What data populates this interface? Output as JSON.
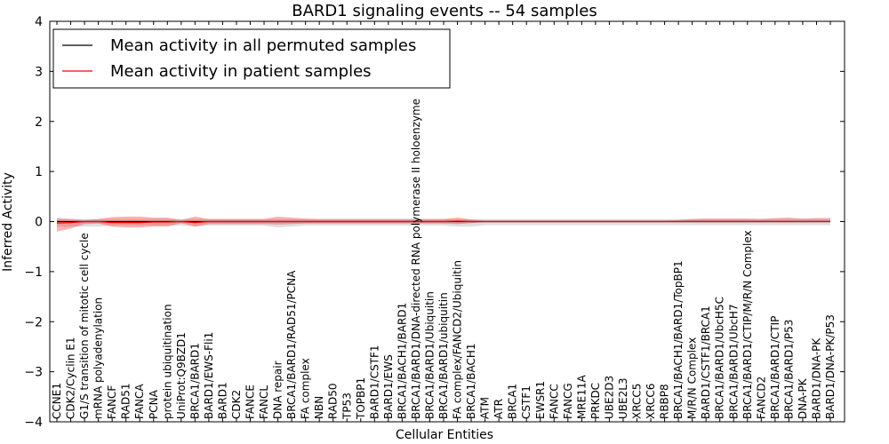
{
  "chart_data": {
    "type": "line",
    "title": "BARD1 signaling events -- 54 samples",
    "xlabel": "Cellular Entities",
    "ylabel": "Inferred Activity",
    "ylim": [
      -4,
      4
    ],
    "yticks": [
      "−4",
      "−3",
      "−2",
      "−1",
      "0",
      "1",
      "2",
      "3",
      "4"
    ],
    "legend_position": "top-left",
    "legend": [
      {
        "label": "Mean activity in all permuted samples",
        "color": "#000000"
      },
      {
        "label": "Mean activity in patient samples",
        "color": "#ff0000"
      }
    ],
    "categories": [
      "CCNE1",
      "CDK2/Cyclin E1",
      "G1/S transition of mitotic cell cycle",
      "mRNA polyadenylation",
      "FANCF",
      "RAD51",
      "FANCA",
      "PCNA",
      "protein ubiquitination",
      "UniProt:Q9BZD1",
      "BRCA1/BARD1",
      "BARD1/EWS-Fli1",
      "BARD1",
      "CDK2",
      "FANCE",
      "FANCL",
      "DNA repair",
      "BRCA1/BARD1/RAD51/PCNA",
      "FA complex",
      "NBN",
      "RAD50",
      "TP53",
      "TOPBP1",
      "BARD1/CSTF1",
      "BARD1/EWS",
      "BRCA1/BACH1/BARD1",
      "BRCA1/BARD1/DNA-directed RNA polymerase II holoenzyme",
      "BRCA1/BARD1/Ubiquitin",
      "BRCA1/BARD1/ubiquitin",
      "FA complex/FANCD2/Ubiquitin",
      "BRCA1/BACH1",
      "ATM",
      "ATR",
      "BRCA1",
      "CSTF1",
      "EWSR1",
      "FANCC",
      "FANCG",
      "MRE11A",
      "PRKDC",
      "UBE2D3",
      "UBE2L3",
      "XRCC5",
      "XRCC6",
      "RBBP8",
      "BRCA1/BACH1/BARD1/TopBP1",
      "M/R/N Complex",
      "BARD1/CSTF1/BRCA1",
      "BRCA1/BARD1/UbcH5C",
      "BRCA1/BARD1/UbcH7",
      "BRCA1/BARD1/CTIP/M/R/N Complex",
      "FANCD2",
      "BRCA1/BARD1/CTIP",
      "BRCA1/BARD1/P53",
      "DNA-PK",
      "BARD1/DNA-PK",
      "BARD1/DNA-PK/P53"
    ],
    "series": [
      {
        "name": "Mean activity in all permuted samples",
        "color": "#000000",
        "values": [
          0,
          0,
          0,
          0,
          0,
          0,
          0,
          0,
          0,
          0,
          0,
          0,
          0,
          0,
          0,
          0,
          0,
          0,
          0,
          0,
          0,
          0,
          0,
          0,
          0,
          0,
          0,
          0,
          0,
          0,
          0,
          0,
          0,
          0,
          0,
          0,
          0,
          0,
          0,
          0,
          0,
          0,
          0,
          0,
          0,
          0,
          0,
          0,
          0,
          0,
          0,
          0,
          0,
          0,
          0,
          0,
          0
        ],
        "band_upper": [
          0.05,
          0.05,
          0.05,
          0.05,
          0.05,
          0.05,
          0.05,
          0.05,
          0.05,
          0.05,
          0.05,
          0.05,
          0.05,
          0.05,
          0.05,
          0.05,
          0.05,
          0.05,
          0.05,
          0.05,
          0.05,
          0.05,
          0.05,
          0.05,
          0.05,
          0.05,
          0.05,
          0.05,
          0.05,
          0.05,
          0.05,
          0.05,
          0.05,
          0.05,
          0.05,
          0.05,
          0.05,
          0.05,
          0.05,
          0.05,
          0.05,
          0.05,
          0.05,
          0.05,
          0.05,
          0.05,
          0.05,
          0.05,
          0.05,
          0.05,
          0.05,
          0.05,
          0.05,
          0.05,
          0.05,
          0.05,
          0.05
        ],
        "band_lower": [
          -0.1,
          -0.1,
          -0.1,
          -0.1,
          -0.08,
          -0.08,
          -0.08,
          -0.08,
          -0.08,
          -0.08,
          -0.1,
          -0.08,
          -0.08,
          -0.08,
          -0.08,
          -0.08,
          -0.12,
          -0.1,
          -0.08,
          -0.08,
          -0.08,
          -0.08,
          -0.08,
          -0.08,
          -0.08,
          -0.08,
          -0.08,
          -0.08,
          -0.08,
          -0.1,
          -0.1,
          -0.07,
          -0.07,
          -0.07,
          -0.07,
          -0.07,
          -0.07,
          -0.07,
          -0.07,
          -0.07,
          -0.07,
          -0.07,
          -0.07,
          -0.07,
          -0.07,
          -0.07,
          -0.07,
          -0.07,
          -0.07,
          -0.07,
          -0.07,
          -0.07,
          -0.07,
          -0.07,
          -0.07,
          -0.07,
          -0.07
        ]
      },
      {
        "name": "Mean activity in patient samples",
        "color": "#ff0000",
        "values": [
          -0.03,
          -0.02,
          0,
          0,
          -0.02,
          -0.02,
          -0.02,
          -0.01,
          -0.01,
          0,
          -0.02,
          0,
          0,
          0,
          0,
          0,
          0,
          0,
          0,
          0,
          0,
          0,
          0,
          0,
          0,
          0,
          0,
          0,
          0,
          0.01,
          0,
          0,
          0,
          0,
          0,
          0,
          0,
          0,
          0,
          0,
          0,
          0,
          0,
          0,
          0,
          0,
          0,
          0,
          0,
          0,
          0,
          0,
          0,
          0,
          0,
          0,
          0
        ],
        "band_upper": [
          0.07,
          0.05,
          0.03,
          0.05,
          0.09,
          0.1,
          0.1,
          0.08,
          0.08,
          0.03,
          0.1,
          0.05,
          0.05,
          0.05,
          0.05,
          0.05,
          0.1,
          0.08,
          0.06,
          0.05,
          0.05,
          0.05,
          0.05,
          0.05,
          0.05,
          0.05,
          0.05,
          0.05,
          0.05,
          0.08,
          0.04,
          0.02,
          0.02,
          0.02,
          0.02,
          0.02,
          0.02,
          0.02,
          0.02,
          0.02,
          0.02,
          0.02,
          0.02,
          0.02,
          0.02,
          0.03,
          0.05,
          0.06,
          0.06,
          0.06,
          0.06,
          0.05,
          0.07,
          0.08,
          0.06,
          0.07,
          0.07
        ],
        "band_lower": [
          -0.2,
          -0.14,
          -0.05,
          -0.04,
          -0.1,
          -0.12,
          -0.12,
          -0.1,
          -0.1,
          -0.03,
          -0.1,
          -0.05,
          -0.05,
          -0.05,
          -0.05,
          -0.05,
          -0.06,
          -0.05,
          -0.04,
          -0.04,
          -0.04,
          -0.04,
          -0.04,
          -0.04,
          -0.04,
          -0.04,
          -0.04,
          -0.04,
          -0.04,
          -0.05,
          -0.03,
          -0.01,
          -0.01,
          -0.01,
          -0.01,
          -0.01,
          -0.01,
          -0.01,
          -0.01,
          -0.01,
          -0.01,
          -0.01,
          -0.01,
          -0.01,
          -0.01,
          -0.01,
          -0.01,
          -0.01,
          -0.01,
          -0.01,
          -0.01,
          -0.01,
          -0.01,
          -0.01,
          -0.01,
          -0.01,
          -0.01
        ]
      }
    ]
  }
}
